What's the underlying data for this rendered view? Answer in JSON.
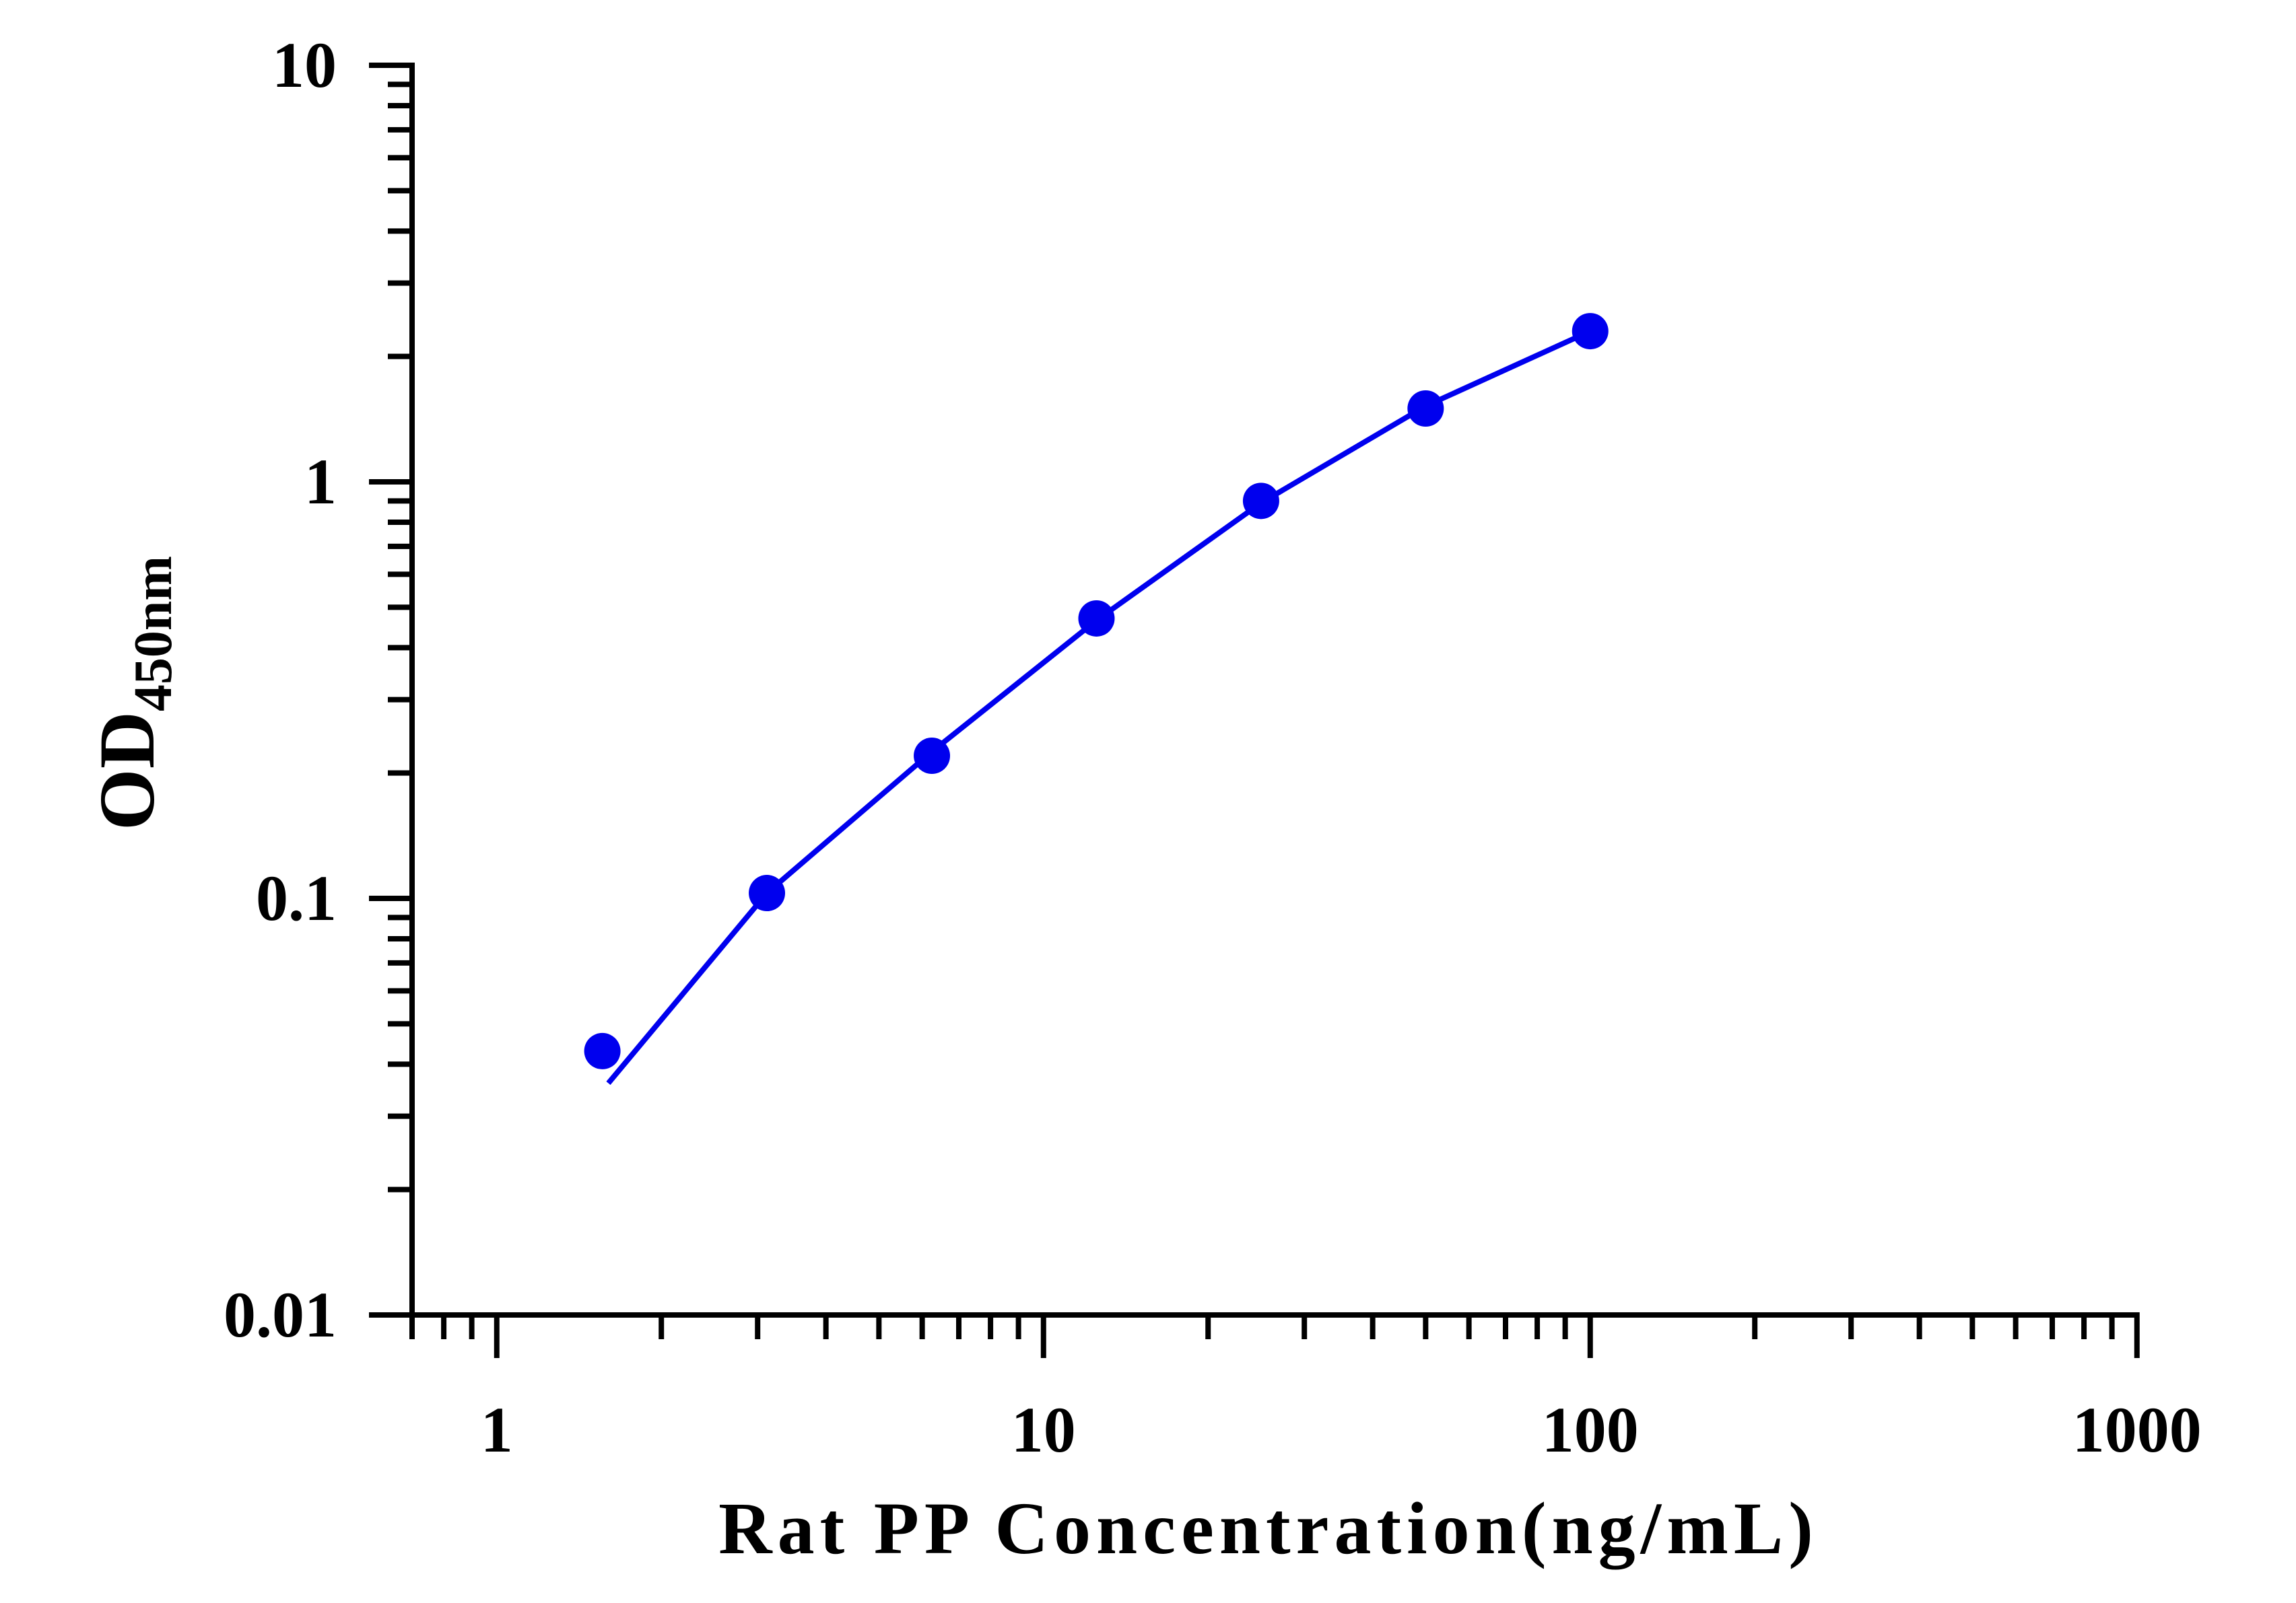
{
  "chart_data": {
    "type": "scatter",
    "title": "",
    "xlabel": "Rat PP Concentration(ng/mL)",
    "ylabel": {
      "main": "OD",
      "sub": "450nm"
    },
    "xscale": "log",
    "yscale": "log",
    "xlim": [
      0.7,
      1000
    ],
    "ylim": [
      0.01,
      10
    ],
    "x_ticks": [
      {
        "value": 1,
        "label": "1"
      },
      {
        "value": 10,
        "label": "10"
      },
      {
        "value": 100,
        "label": "100"
      },
      {
        "value": 1000,
        "label": "1000"
      }
    ],
    "y_ticks": [
      {
        "value": 0.01,
        "label": "0.01"
      },
      {
        "value": 0.1,
        "label": "0.1"
      },
      {
        "value": 1,
        "label": "1"
      },
      {
        "value": 10,
        "label": "10"
      }
    ],
    "grid": false,
    "legend": "none",
    "series": [
      {
        "color": "#0000ee",
        "points": [
          {
            "x": 1.56,
            "y": 0.043
          },
          {
            "x": 3.12,
            "y": 0.103
          },
          {
            "x": 6.25,
            "y": 0.22
          },
          {
            "x": 12.5,
            "y": 0.47
          },
          {
            "x": 25,
            "y": 0.9
          },
          {
            "x": 50,
            "y": 1.5
          },
          {
            "x": 100,
            "y": 2.3
          }
        ],
        "fit_curve": [
          {
            "x": 1.6,
            "y": 0.036
          },
          {
            "x": 3.12,
            "y": 0.103
          },
          {
            "x": 6.25,
            "y": 0.225
          },
          {
            "x": 12.5,
            "y": 0.465
          },
          {
            "x": 25,
            "y": 0.89
          },
          {
            "x": 50,
            "y": 1.52
          },
          {
            "x": 100,
            "y": 2.3
          }
        ]
      }
    ]
  }
}
